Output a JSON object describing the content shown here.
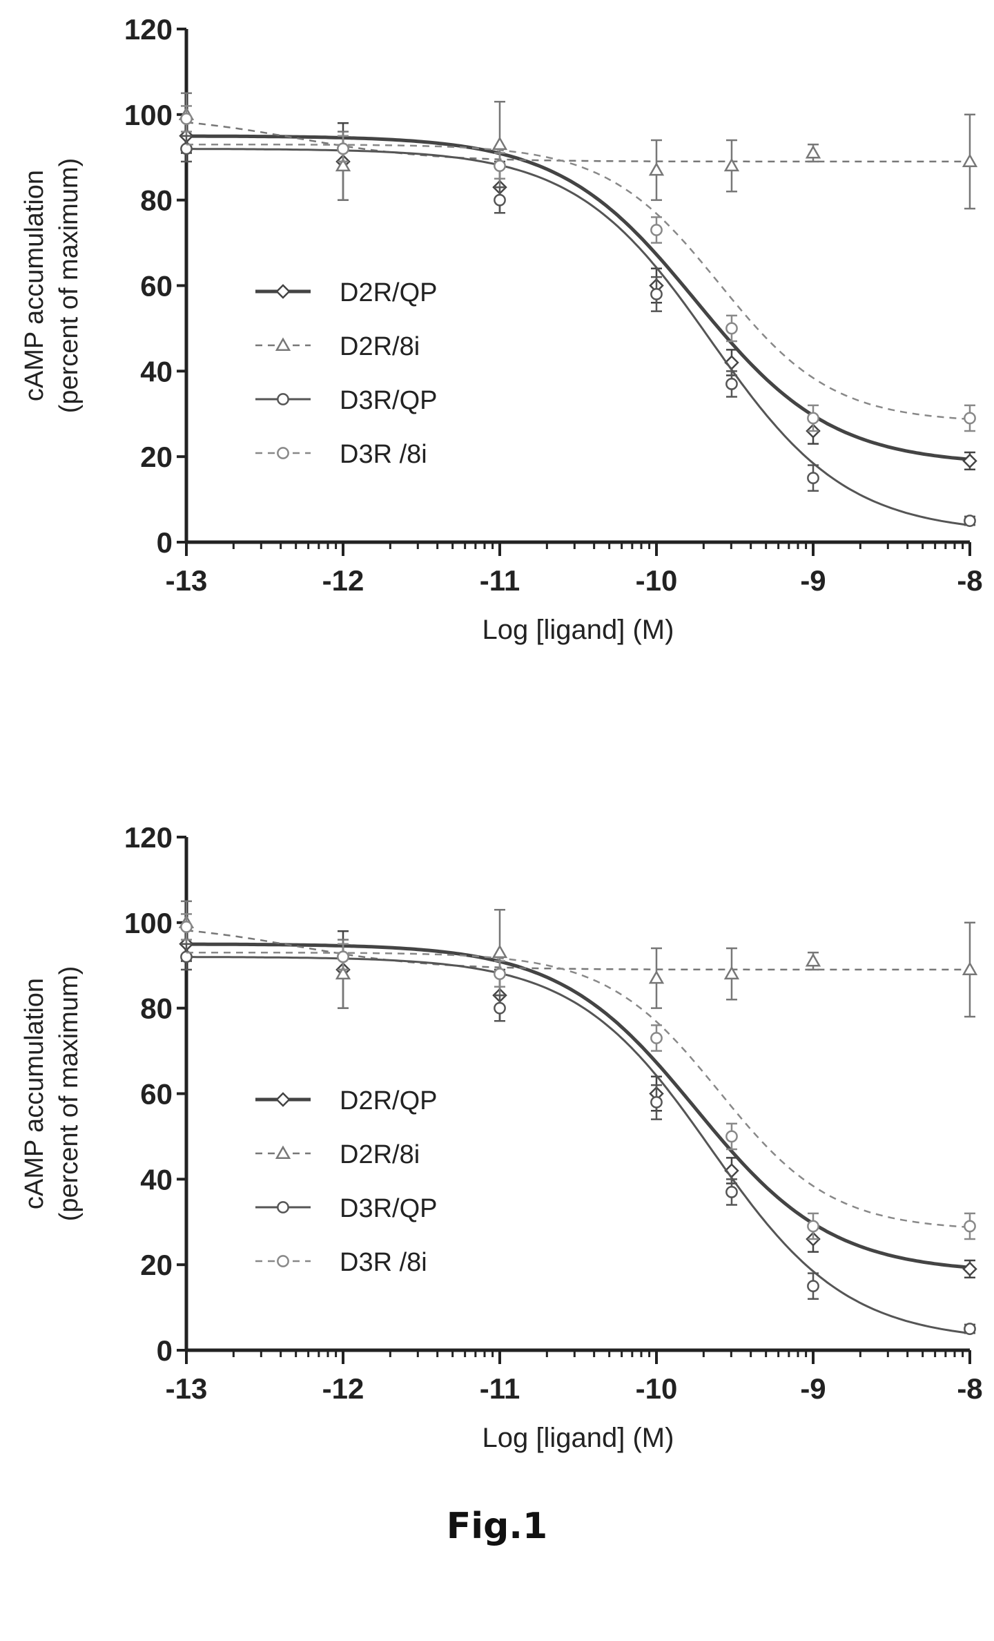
{
  "figure_label": "Fig.1",
  "chart_data": [
    {
      "type": "line",
      "title": "",
      "xlabel": "Log [ligand] (M)",
      "ylabel": "cAMP accumulation",
      "ylabel_sub": "(percent of maximum)",
      "xlim": [
        -13,
        -8
      ],
      "ylim": [
        0,
        120
      ],
      "xticks": [
        -13,
        -12,
        -11,
        -10,
        -9,
        -8
      ],
      "yticks": [
        0,
        20,
        40,
        60,
        80,
        100,
        120
      ],
      "legend_position": "left-center",
      "grid": false,
      "series": [
        {
          "name": "D2R/QP",
          "marker": "diamond",
          "dash": "solid",
          "stroke": 5,
          "color": "#444444",
          "x": [
            -13,
            -12,
            -11,
            -10,
            -9.52,
            -9,
            -8
          ],
          "y": [
            95,
            89,
            83,
            60,
            42,
            26,
            19
          ],
          "err": [
            4,
            9,
            6,
            4,
            3,
            3,
            2
          ],
          "fit": {
            "top": 95,
            "bottom": 18,
            "logec50": -9.75,
            "hill": 1.0
          }
        },
        {
          "name": "D2R/8i",
          "marker": "triangle",
          "dash": "dashed",
          "stroke": 2.5,
          "color": "#777777",
          "x": [
            -13,
            -12,
            -11,
            -10,
            -9.52,
            -9,
            -8
          ],
          "y": [
            100,
            88,
            93,
            87,
            88,
            91,
            89
          ],
          "err": [
            5,
            8,
            10,
            7,
            6,
            2,
            11
          ],
          "fit": {
            "top": 100,
            "bottom": 89,
            "logec50": -12.3,
            "hill": 1.0
          }
        },
        {
          "name": "D3R/QP",
          "marker": "circle",
          "dash": "solid",
          "stroke": 3,
          "color": "#555555",
          "x": [
            -13,
            -12,
            -11,
            -10,
            -9.52,
            -9,
            -8
          ],
          "y": [
            92,
            92,
            80,
            58,
            37,
            15,
            5
          ],
          "err": [
            3,
            3,
            3,
            4,
            3,
            3,
            1
          ],
          "fit": {
            "top": 92,
            "bottom": 2,
            "logec50": -9.65,
            "hill": 1.0
          }
        },
        {
          "name": "D3R /8i",
          "marker": "circle",
          "dash": "dashed",
          "stroke": 2.5,
          "color": "#888888",
          "x": [
            -13,
            -12,
            -11,
            -10,
            -9.52,
            -9,
            -8
          ],
          "y": [
            99,
            92,
            88,
            73,
            50,
            29,
            29
          ],
          "err": [
            3,
            3,
            3,
            3,
            3,
            3,
            3
          ],
          "fit": {
            "top": 93,
            "bottom": 28,
            "logec50": -9.6,
            "hill": 1.2
          }
        }
      ]
    },
    {
      "type": "line",
      "title": "",
      "xlabel": "Log [ligand] (M)",
      "ylabel": "cAMP accumulation",
      "ylabel_sub": "(percent of maximum)",
      "xlim": [
        -13,
        -8
      ],
      "ylim": [
        0,
        120
      ],
      "xticks": [
        -13,
        -12,
        -11,
        -10,
        -9,
        -8
      ],
      "yticks": [
        0,
        20,
        40,
        60,
        80,
        100,
        120
      ],
      "legend_position": "left-center",
      "grid": false,
      "series": [
        {
          "name": "D2R/QP",
          "marker": "diamond",
          "dash": "solid",
          "stroke": 5,
          "color": "#444444",
          "x": [
            -13,
            -12,
            -11,
            -10,
            -9.52,
            -9,
            -8
          ],
          "y": [
            95,
            89,
            83,
            60,
            42,
            26,
            19
          ],
          "err": [
            4,
            9,
            6,
            4,
            3,
            3,
            2
          ],
          "fit": {
            "top": 95,
            "bottom": 18,
            "logec50": -9.75,
            "hill": 1.0
          }
        },
        {
          "name": "D2R/8i",
          "marker": "triangle",
          "dash": "dashed",
          "stroke": 2.5,
          "color": "#777777",
          "x": [
            -13,
            -12,
            -11,
            -10,
            -9.52,
            -9,
            -8
          ],
          "y": [
            100,
            88,
            93,
            87,
            88,
            91,
            89
          ],
          "err": [
            5,
            8,
            10,
            7,
            6,
            2,
            11
          ],
          "fit": {
            "top": 100,
            "bottom": 89,
            "logec50": -12.3,
            "hill": 1.0
          }
        },
        {
          "name": "D3R/QP",
          "marker": "circle",
          "dash": "solid",
          "stroke": 3,
          "color": "#555555",
          "x": [
            -13,
            -12,
            -11,
            -10,
            -9.52,
            -9,
            -8
          ],
          "y": [
            92,
            92,
            80,
            58,
            37,
            15,
            5
          ],
          "err": [
            3,
            3,
            3,
            4,
            3,
            3,
            1
          ],
          "fit": {
            "top": 92,
            "bottom": 2,
            "logec50": -9.65,
            "hill": 1.0
          }
        },
        {
          "name": "D3R /8i",
          "marker": "circle",
          "dash": "dashed",
          "stroke": 2.5,
          "color": "#888888",
          "x": [
            -13,
            -12,
            -11,
            -10,
            -9.52,
            -9,
            -8
          ],
          "y": [
            99,
            92,
            88,
            73,
            50,
            29,
            29
          ],
          "err": [
            3,
            3,
            3,
            3,
            3,
            3,
            3
          ],
          "fit": {
            "top": 93,
            "bottom": 28,
            "logec50": -9.6,
            "hill": 1.2
          }
        }
      ]
    }
  ]
}
